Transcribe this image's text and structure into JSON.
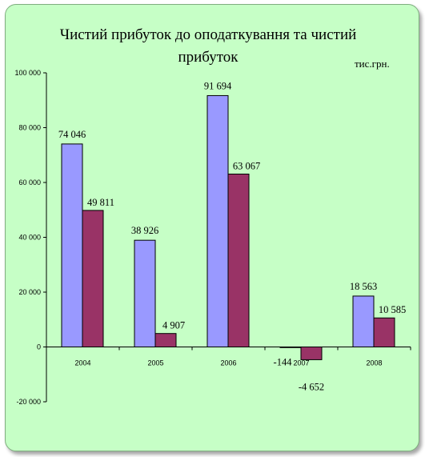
{
  "chart_data": {
    "type": "bar",
    "title": "Чистий прибуток до оподаткування та чистий прибуток",
    "unit_label": "тис.грн.",
    "categories": [
      "2004",
      "2005",
      "2006",
      "2007",
      "2008"
    ],
    "series": [
      {
        "values": [
          74046,
          38926,
          91694,
          -144,
          18563
        ],
        "labels": [
          "74 046",
          "38 926",
          "91 694",
          "-144",
          "18 563"
        ],
        "color": "#9999ff"
      },
      {
        "values": [
          49811,
          4907,
          63067,
          -4652,
          10585
        ],
        "labels": [
          "49 811",
          "4 907",
          "63 067",
          "-4 652",
          "10 585"
        ],
        "color": "#993366"
      }
    ],
    "ylim": [
      -20000,
      100000
    ],
    "yticks": [
      -20000,
      0,
      20000,
      40000,
      60000,
      80000,
      100000
    ],
    "ytick_labels": [
      "-20 000",
      "0",
      "20 000",
      "40 000",
      "60 000",
      "80 000",
      "100 000"
    ],
    "grid": false,
    "legend": "none"
  }
}
